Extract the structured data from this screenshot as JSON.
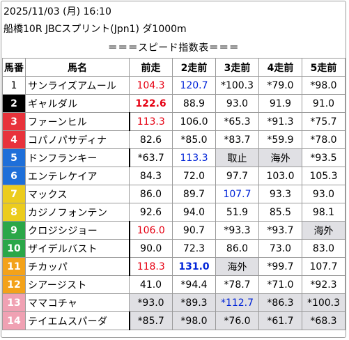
{
  "header": {
    "line1": "2025/11/03 (月) 16:10",
    "line2": "船橋10R JBCスプリント(Jpn1) ダ1000m"
  },
  "subtitle": "＝＝＝スピード指数表＝＝＝",
  "columns": [
    "馬番",
    "馬名",
    "前走",
    "2走前",
    "3走前",
    "4走前",
    "5走前"
  ],
  "colors": {
    "frame_black": "#000000",
    "frame_red": "#e8323b",
    "frame_blue": "#1e6fd9",
    "frame_yellow": "#eccc1d",
    "frame_green": "#2aa748",
    "frame_orange": "#f3a21a",
    "frame_pink": "#f0a1b3",
    "value_red": "#e60012",
    "value_blue": "#0024d8",
    "shade_gray": "#e0e0e4"
  },
  "rows": [
    {
      "no": "1",
      "name": "サンライズアムール",
      "v1": "104.3",
      "v2": "120.7",
      "v3": "*100.3",
      "v4": "*79.0",
      "v5": "*98.0"
    },
    {
      "no": "2",
      "name": "ギャルダル",
      "v1": "122.6",
      "v2": "88.9",
      "v3": "93.0",
      "v4": "91.9",
      "v5": "91.0"
    },
    {
      "no": "3",
      "name": "ファーンヒル",
      "v1": "113.3",
      "v2": "106.0",
      "v3": "*65.3",
      "v4": "*91.3",
      "v5": "*75.7"
    },
    {
      "no": "4",
      "name": "コパノパサディナ",
      "v1": "82.6",
      "v2": "*85.0",
      "v3": "*83.7",
      "v4": "*59.9",
      "v5": "*78.0"
    },
    {
      "no": "5",
      "name": "ドンフランキー",
      "v1": "*63.7",
      "v2": "113.3",
      "v3": "取止",
      "v4": "海外",
      "v5": "*93.5"
    },
    {
      "no": "6",
      "name": "エンテレケイア",
      "v1": "84.3",
      "v2": "72.0",
      "v3": "97.7",
      "v4": "103.0",
      "v5": "105.3"
    },
    {
      "no": "7",
      "name": "マックス",
      "v1": "86.0",
      "v2": "89.7",
      "v3": "107.7",
      "v4": "93.3",
      "v5": "93.0"
    },
    {
      "no": "8",
      "name": "カジノフォンテン",
      "v1": "92.6",
      "v2": "94.0",
      "v3": "51.9",
      "v4": "85.5",
      "v5": "98.1"
    },
    {
      "no": "9",
      "name": "クロジシジョー",
      "v1": "106.0",
      "v2": "90.7",
      "v3": "*93.3",
      "v4": "*93.7",
      "v5": "海外"
    },
    {
      "no": "10",
      "name": "ザイデルバスト",
      "v1": "90.0",
      "v2": "72.3",
      "v3": "86.0",
      "v4": "73.0",
      "v5": "83.0"
    },
    {
      "no": "11",
      "name": "チカッパ",
      "v1": "118.3",
      "v2": "131.0",
      "v3": "海外",
      "v4": "*99.7",
      "v5": "107.7"
    },
    {
      "no": "12",
      "name": "シアージスト",
      "v1": "41.0",
      "v2": "*94.4",
      "v3": "*78.7",
      "v4": "*71.0",
      "v5": "*92.3"
    },
    {
      "no": "13",
      "name": "ママコチャ",
      "v1": "*93.0",
      "v2": "*89.3",
      "v3": "*112.7",
      "v4": "*86.3",
      "v5": "*100.3"
    },
    {
      "no": "14",
      "name": "テイエムスパーダ",
      "v1": "*85.7",
      "v2": "*98.0",
      "v3": "*76.0",
      "v4": "*61.7",
      "v5": "*68.3"
    }
  ]
}
